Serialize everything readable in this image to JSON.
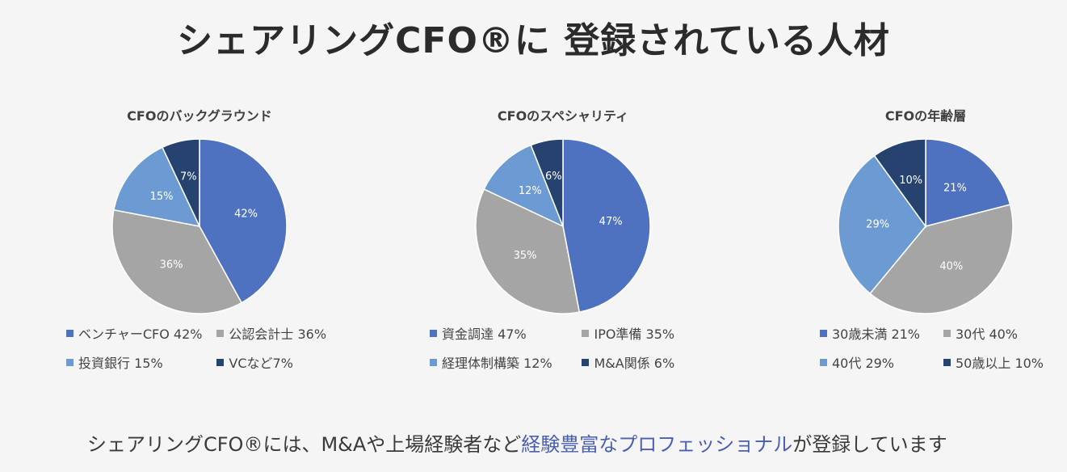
{
  "title": "シェアリングCFO®に 登録されている人材",
  "chart_data": [
    {
      "type": "pie",
      "title": "CFOのバックグラウンド",
      "categories": [
        "ベンチャーCFO",
        "公認会計士",
        "投資銀行",
        "VCなど"
      ],
      "values": [
        42,
        36,
        15,
        7
      ],
      "data_labels": [
        "42%",
        "36%",
        "15%",
        "7%"
      ],
      "legend": [
        "ベンチャーCFO 42%",
        "公認会計士 36%",
        "投資銀行 15%",
        "VCなど7%"
      ],
      "colors": [
        "#4e72c0",
        "#a5a5a5",
        "#6b9bd2",
        "#26426f"
      ],
      "legend_position": "bottom"
    },
    {
      "type": "pie",
      "title": "CFOのスペシャリティ",
      "categories": [
        "資金調達",
        "IPO準備",
        "経理体制構築",
        "M&A関係"
      ],
      "values": [
        47,
        35,
        12,
        6
      ],
      "data_labels": [
        "47%",
        "35%",
        "12%",
        "6%"
      ],
      "legend": [
        "資金調達 47%",
        "IPO準備 35%",
        "経理体制構築 12%",
        "M&A関係 6%"
      ],
      "colors": [
        "#4e72c0",
        "#a5a5a5",
        "#6b9bd2",
        "#26426f"
      ],
      "legend_position": "bottom"
    },
    {
      "type": "pie",
      "title": "CFOの年齢層",
      "categories": [
        "30歳未満",
        "30代",
        "40代",
        "50歳以上"
      ],
      "values": [
        21,
        40,
        29,
        10
      ],
      "data_labels": [
        "21%",
        "40%",
        "29%",
        "10%"
      ],
      "legend": [
        "30歳未満 21%",
        "30代 40%",
        "40代 29%",
        "50歳以上 10%"
      ],
      "colors": [
        "#4e72c0",
        "#a5a5a5",
        "#6b9bd2",
        "#26426f"
      ],
      "legend_position": "bottom"
    }
  ],
  "footer": {
    "part1": "シェアリングCFO®には、M&Aや上場経験者など",
    "part2": "経験豊富なプロフェッショナル",
    "part3": "が登録しています"
  }
}
